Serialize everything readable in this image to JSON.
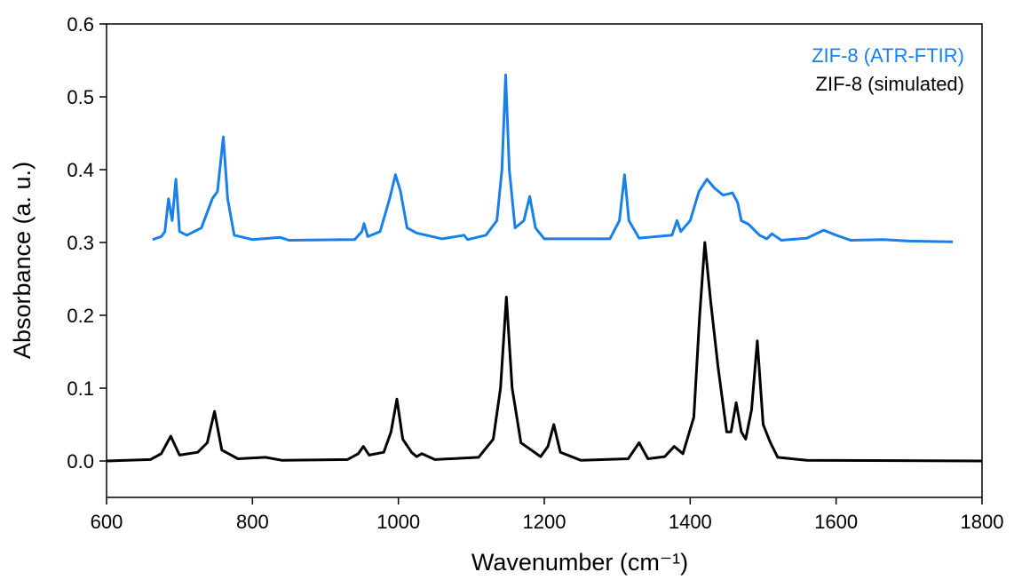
{
  "chart_data": {
    "type": "line",
    "x_label": "Wavenumber (cm⁻¹)",
    "y_label": "Absorbance (a. u.)",
    "xlim": [
      600,
      1800
    ],
    "xticks": [
      600,
      800,
      1000,
      1200,
      1400,
      1600,
      1800
    ],
    "ylim": [
      -0.05,
      0.6
    ],
    "yticks": [
      {
        "value": 0,
        "label": "0.0"
      },
      0.1,
      0.2,
      0.3,
      0.4,
      0.5,
      0.6
    ],
    "legend": "upper right",
    "series": [
      {
        "name": "ZIF-8 (ATR-FTIR)",
        "color": "#1a7fe8",
        "x": [
          663,
          675,
          680,
          685,
          690,
          695,
          700,
          710,
          730,
          745,
          752,
          760,
          766,
          775,
          800,
          838,
          850,
          940,
          950,
          953,
          958,
          975,
          988,
          996,
          1003,
          1012,
          1025,
          1060,
          1090,
          1095,
          1120,
          1135,
          1142,
          1147,
          1152,
          1160,
          1172,
          1180,
          1188,
          1200,
          1290,
          1303,
          1310,
          1316,
          1330,
          1375,
          1382,
          1387,
          1400,
          1412,
          1423,
          1433,
          1445,
          1458,
          1465,
          1470,
          1480,
          1495,
          1505,
          1512,
          1525,
          1560,
          1583,
          1600,
          1620,
          1665,
          1700,
          1760
        ],
        "values": [
          0.304,
          0.308,
          0.315,
          0.36,
          0.33,
          0.387,
          0.315,
          0.31,
          0.32,
          0.36,
          0.37,
          0.445,
          0.36,
          0.31,
          0.304,
          0.307,
          0.303,
          0.304,
          0.315,
          0.326,
          0.308,
          0.315,
          0.36,
          0.393,
          0.37,
          0.32,
          0.313,
          0.305,
          0.31,
          0.304,
          0.31,
          0.33,
          0.4,
          0.53,
          0.4,
          0.32,
          0.33,
          0.363,
          0.32,
          0.305,
          0.305,
          0.33,
          0.393,
          0.33,
          0.306,
          0.31,
          0.33,
          0.315,
          0.33,
          0.37,
          0.387,
          0.375,
          0.365,
          0.368,
          0.355,
          0.33,
          0.325,
          0.31,
          0.305,
          0.312,
          0.303,
          0.306,
          0.317,
          0.31,
          0.303,
          0.304,
          0.302,
          0.301
        ]
      },
      {
        "name": "ZIF-8 (simulated)",
        "color": "#000000",
        "x": [
          600,
          660,
          675,
          688,
          700,
          725,
          738,
          748,
          758,
          780,
          818,
          840,
          930,
          945,
          952,
          960,
          980,
          990,
          998,
          1006,
          1018,
          1025,
          1032,
          1050,
          1110,
          1130,
          1140,
          1148,
          1156,
          1168,
          1195,
          1205,
          1213,
          1222,
          1250,
          1315,
          1330,
          1342,
          1365,
          1378,
          1390,
          1405,
          1413,
          1420,
          1428,
          1438,
          1450,
          1456,
          1463,
          1470,
          1476,
          1484,
          1492,
          1500,
          1510,
          1520,
          1560,
          1800
        ],
        "values": [
          0,
          0.002,
          0.01,
          0.034,
          0.008,
          0.012,
          0.025,
          0.068,
          0.015,
          0.003,
          0.005,
          0.001,
          0.002,
          0.01,
          0.02,
          0.008,
          0.012,
          0.04,
          0.085,
          0.03,
          0.012,
          0.006,
          0.01,
          0.002,
          0.005,
          0.03,
          0.1,
          0.225,
          0.1,
          0.025,
          0.006,
          0.02,
          0.05,
          0.012,
          0.001,
          0.003,
          0.025,
          0.003,
          0.006,
          0.02,
          0.01,
          0.06,
          0.2,
          0.3,
          0.22,
          0.13,
          0.04,
          0.04,
          0.08,
          0.04,
          0.03,
          0.07,
          0.165,
          0.05,
          0.025,
          0.005,
          0.001,
          0
        ]
      }
    ]
  }
}
